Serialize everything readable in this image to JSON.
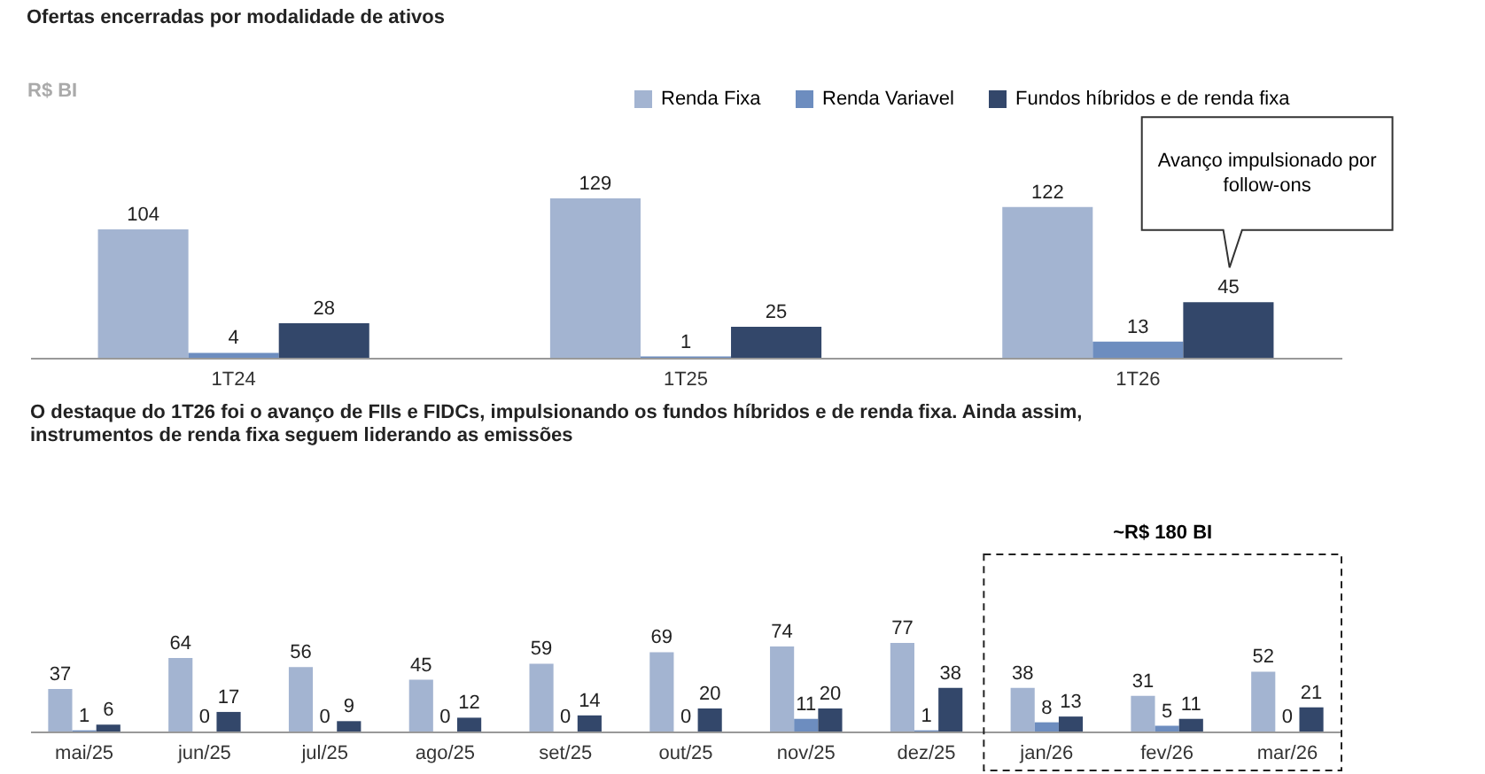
{
  "chart_data": [
    {
      "type": "bar",
      "title": "Ofertas encerradas por modalidade de ativos",
      "ylabel": "R$ BI",
      "categories": [
        "1T24",
        "1T25",
        "1T26"
      ],
      "series": [
        {
          "name": "Renda Fixa",
          "color": "#a3b4d1",
          "values": [
            104,
            129,
            122
          ]
        },
        {
          "name": "Renda Variavel",
          "color": "#6d8dbf",
          "values": [
            4,
            1,
            13
          ]
        },
        {
          "name": "Fundos híbridos e de renda fixa",
          "color": "#33476a",
          "values": [
            28,
            25,
            45
          ]
        }
      ],
      "data_labels": true,
      "legend": "top right",
      "annotations": [
        "Avanço impulsionado por follow-ons"
      ]
    },
    {
      "type": "bar",
      "title": "O destaque do 1T26 foi o avanço de FIIs e FIDCs, impulsionando os fundos híbridos e de renda fixa. Ainda assim, instrumentos de renda fixa seguem liderando as emissões",
      "categories": [
        "mai/25",
        "jun/25",
        "jul/25",
        "ago/25",
        "set/25",
        "out/25",
        "nov/25",
        "dez/25",
        "jan/26",
        "fev/26",
        "mar/26"
      ],
      "series": [
        {
          "color": "#a3b4d1",
          "values": [
            37,
            64,
            56,
            45,
            59,
            69,
            74,
            77,
            38,
            31,
            52
          ]
        },
        {
          "color": "#6d8dbf",
          "values": [
            1,
            0,
            0,
            0,
            0,
            0,
            11,
            1,
            8,
            5,
            0
          ]
        },
        {
          "color": "#33476a",
          "values": [
            6,
            17,
            9,
            12,
            14,
            20,
            20,
            38,
            13,
            11,
            21
          ]
        }
      ],
      "data_labels": true,
      "annotations": [
        "~R$ 180 BI"
      ]
    }
  ]
}
